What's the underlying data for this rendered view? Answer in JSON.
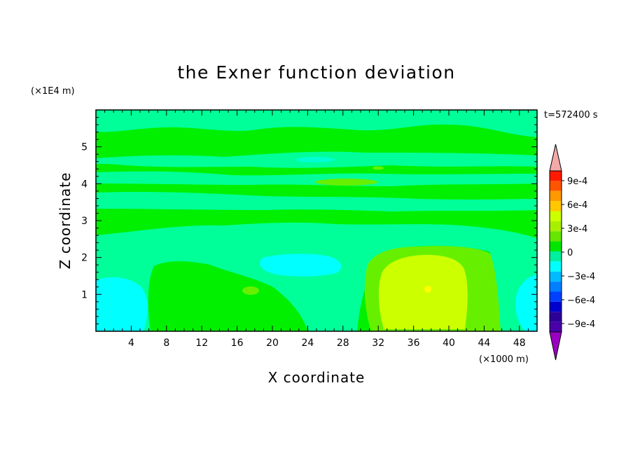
{
  "chart_data": {
    "type": "heatmap",
    "title": "the Exner function deviation",
    "xlabel": "X coordinate",
    "ylabel": "Z coordinate",
    "x_unit": "(×1000 m)",
    "y_unit": "(×1E4 m)",
    "time_label": "t=572400 s",
    "xlim": [
      0,
      50
    ],
    "ylim": [
      0,
      6
    ],
    "x_ticks": [
      4,
      8,
      12,
      16,
      20,
      24,
      28,
      32,
      36,
      40,
      44,
      48
    ],
    "y_ticks": [
      1,
      2,
      3,
      4,
      5
    ],
    "colorbar": {
      "levels": [
        -0.0009,
        -0.0006,
        -0.0003,
        0,
        0.0003,
        0.0006,
        0.0009
      ],
      "labels": [
        "9e-4",
        "6e-4",
        "3e-4",
        "0",
        "−3e-4",
        "−6e-4",
        "−9e-4"
      ],
      "colors_high_to_low": [
        "#ff1a00",
        "#ff5500",
        "#ff9900",
        "#ffc800",
        "#ccff00",
        "#a8f000",
        "#66e600",
        "#00e600",
        "#00f0a0",
        "#00ffff",
        "#00bbff",
        "#0080ff",
        "#0040ff",
        "#0000cc",
        "#2c0099",
        "#4a00a8"
      ],
      "over_color": "#f4a9a9",
      "under_color": "#9b00c2"
    },
    "field_colors": {
      "neg_weak": "#00ffff",
      "neg_very_weak": "#00ff99",
      "zero": "#00f000",
      "pos_weak": "#66f000",
      "pos_moderate": "#ccff00",
      "pos_peak": "#ffff00"
    }
  }
}
